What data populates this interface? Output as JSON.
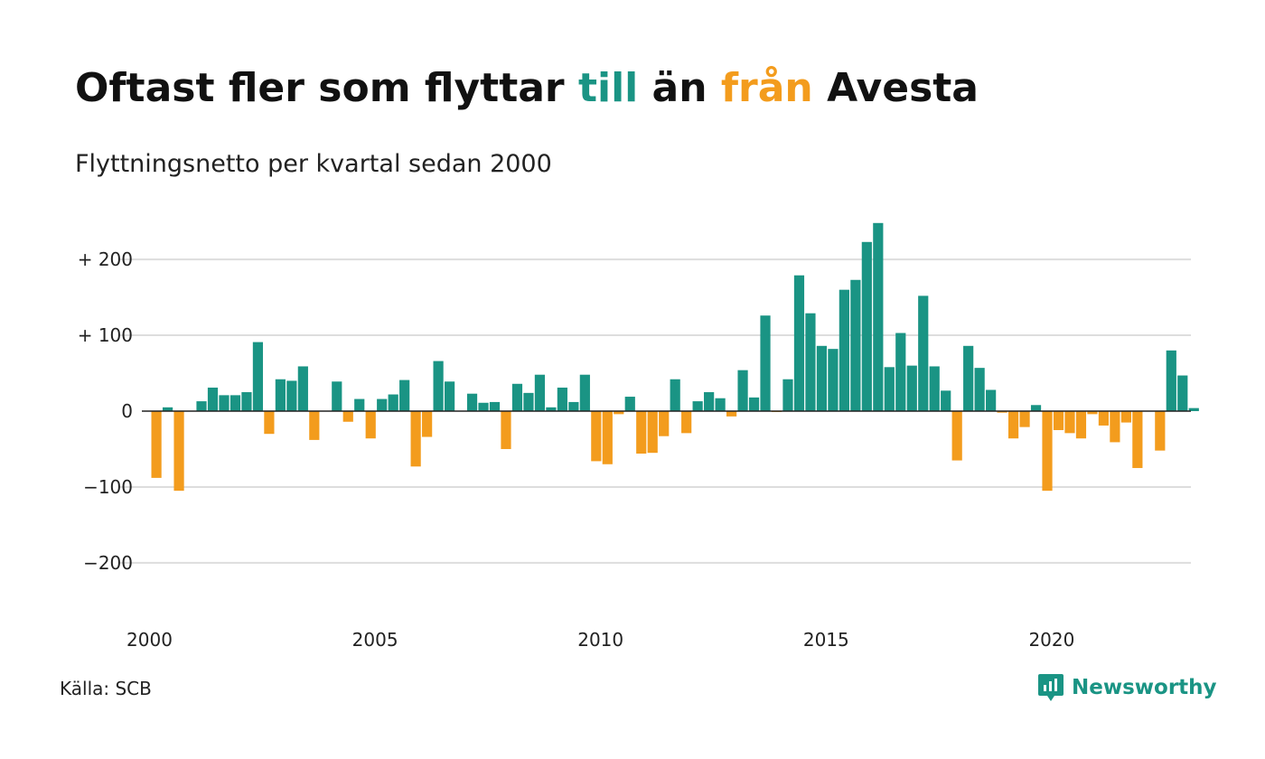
{
  "title": {
    "part1": "Oftast fler som flyttar ",
    "till": "till",
    "part2": " än ",
    "fran": "från",
    "part3": " Avesta"
  },
  "subtitle": "Flyttningsnetto per kvartal sedan 2000",
  "source": "Källa: SCB",
  "brand": "Newsworthy",
  "colors": {
    "positive": "#1a9484",
    "negative": "#f39c1d",
    "grid": "#dddddd",
    "zero_line": "#222222"
  },
  "chart_data": {
    "type": "bar",
    "title": "Oftast fler som flyttar till än från Avesta",
    "subtitle": "Flyttningsnetto per kvartal sedan 2000",
    "start": "2000 Q1",
    "y_ticks": [
      200,
      100,
      0,
      -100,
      -200
    ],
    "y_tick_labels": [
      "+ 200",
      "+ 100",
      "0",
      "−100",
      "−200"
    ],
    "x_tick_labels": [
      "2000",
      "2005",
      "2010",
      "2015",
      "2020"
    ],
    "ylim": [
      -250,
      250
    ],
    "grid": true,
    "values": [
      -88,
      5,
      -105,
      0,
      13,
      31,
      21,
      21,
      25,
      91,
      -30,
      42,
      40,
      59,
      -38,
      0,
      39,
      -14,
      16,
      -36,
      16,
      22,
      41,
      -73,
      -34,
      66,
      39,
      0,
      23,
      11,
      12,
      -50,
      36,
      24,
      48,
      5,
      31,
      12,
      48,
      -66,
      -70,
      -4,
      19,
      -56,
      -55,
      -33,
      42,
      -29,
      13,
      25,
      17,
      -7,
      54,
      18,
      126,
      -1,
      42,
      179,
      129,
      86,
      82,
      160,
      173,
      223,
      248,
      58,
      103,
      60,
      152,
      59,
      27,
      -65,
      86,
      57,
      28,
      -2,
      -36,
      -21,
      8,
      -105,
      -25,
      -29,
      -36,
      -4,
      -19,
      -41,
      -15,
      -75,
      0,
      -52,
      80,
      47,
      4
    ]
  }
}
